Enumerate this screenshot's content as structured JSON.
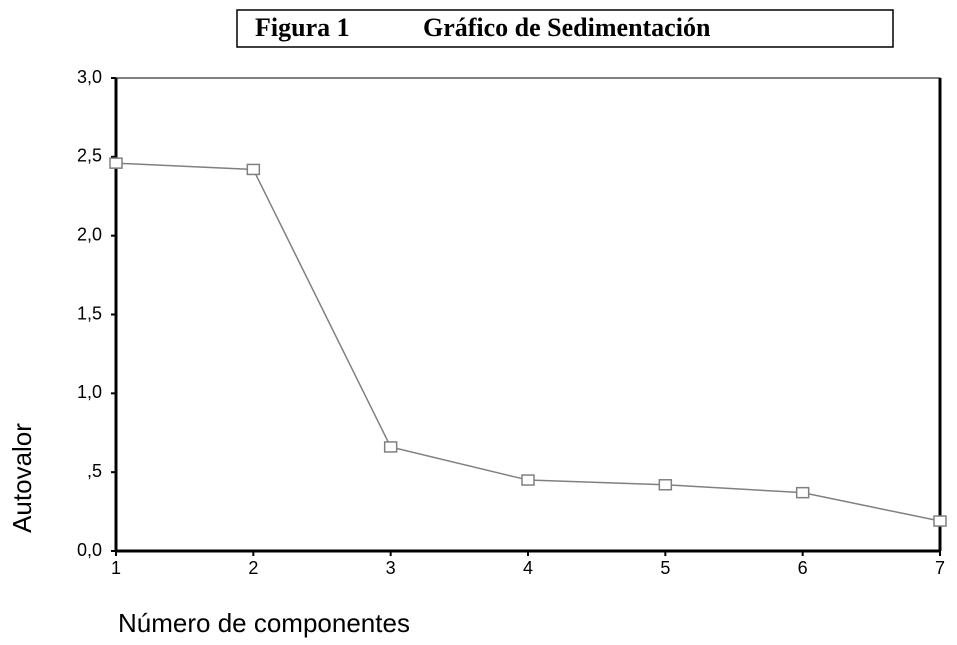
{
  "chart_data": {
    "type": "line",
    "figure_label": "Figura 1",
    "title": "Gráfico de Sedimentación",
    "x_label": "Número de componentes",
    "y_label": "Autovalor",
    "x": [
      1,
      2,
      3,
      4,
      5,
      6,
      7
    ],
    "series": [
      {
        "color": "#808080",
        "values": [
          2.46,
          2.42,
          0.66,
          0.45,
          0.42,
          0.37,
          0.19
        ]
      }
    ],
    "xlim": [
      1,
      7
    ],
    "xticks": [
      1,
      2,
      3,
      4,
      5,
      6,
      7
    ],
    "ylim": [
      0,
      3
    ],
    "yticks": [
      {
        "value": 0,
        "label": "0,0"
      },
      {
        "value": 0.5,
        "label": ",5"
      },
      {
        "value": 1,
        "label": "1,0"
      },
      {
        "value": 1.5,
        "label": "1,5"
      },
      {
        "value": 2,
        "label": "2,0"
      },
      {
        "value": 2.5,
        "label": "2,5"
      },
      {
        "value": 3,
        "label": "3,0"
      }
    ],
    "marker": "square"
  }
}
